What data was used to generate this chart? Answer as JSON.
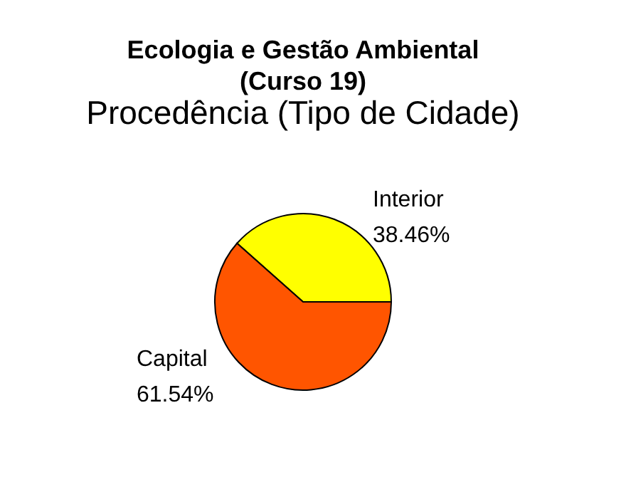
{
  "chart_data": {
    "type": "pie",
    "title": "Ecologia e Gestão Ambiental\n(Curso 19)",
    "subtitle": "Procedência (Tipo de Cidade)",
    "categories": [
      "Interior",
      "Capital"
    ],
    "values": [
      38.46,
      61.54
    ],
    "colors": [
      "#ffff00",
      "#ff5500"
    ],
    "value_labels": [
      "38.46%",
      "61.54%"
    ]
  }
}
